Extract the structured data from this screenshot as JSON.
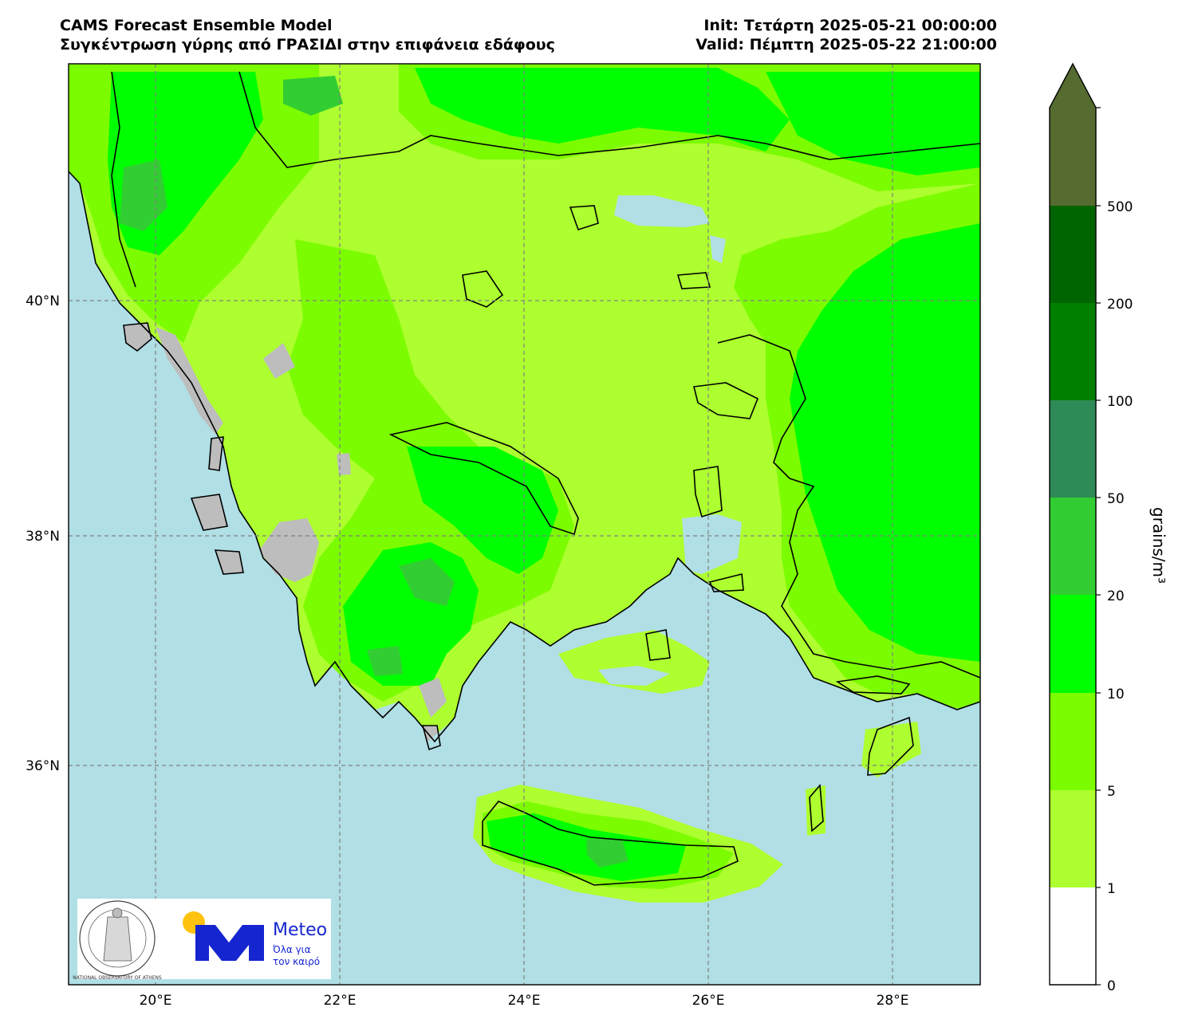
{
  "header": {
    "left_line1": "CAMS Forecast Ensemble Model",
    "left_line2": "Συγκέντρωση γύρης από ΓΡΑΣΙΔΙ στην επιφάνεια εδάφους",
    "right_line1": "Init: Τετάρτη 2025-05-21 00:00:00",
    "right_line2": "Valid: Πέμπτη 2025-05-22 21:00:00"
  },
  "map": {
    "lat_labels": [
      "40°N",
      "38°N",
      "36°N"
    ],
    "lon_labels": [
      "20°E",
      "22°E",
      "24°E",
      "26°E",
      "28°E"
    ],
    "colors": {
      "sea": "#b0dfe5",
      "land_missing": "#bdbdbd",
      "coast": "#000000",
      "grid": "#808080"
    }
  },
  "colorbar": {
    "label": "grains/m³",
    "ticks": [
      "0",
      "1",
      "5",
      "10",
      "20",
      "50",
      "100",
      "200",
      "500"
    ],
    "bins": [
      {
        "from": "0",
        "to": "1",
        "color": "#ffffff"
      },
      {
        "from": "1",
        "to": "5",
        "color": "#adff2f"
      },
      {
        "from": "5",
        "to": "10",
        "color": "#7cfc00"
      },
      {
        "from": "10",
        "to": "20",
        "color": "#00ff00"
      },
      {
        "from": "20",
        "to": "50",
        "color": "#32cd32"
      },
      {
        "from": "50",
        "to": "100",
        "color": "#2e8b57"
      },
      {
        "from": "100",
        "to": "200",
        "color": "#007f00"
      },
      {
        "from": "200",
        "to": "500",
        "color": "#006400"
      },
      {
        "from": "500",
        "to": ">500",
        "color": "#556b2f"
      }
    ]
  },
  "logos": {
    "observatory_seal_text": "NATIONAL OBSERVATORY OF ATHENS",
    "meteo_name": "Meteo",
    "meteo_tagline_1": "Όλα για",
    "meteo_tagline_2": "τον καιρό"
  }
}
